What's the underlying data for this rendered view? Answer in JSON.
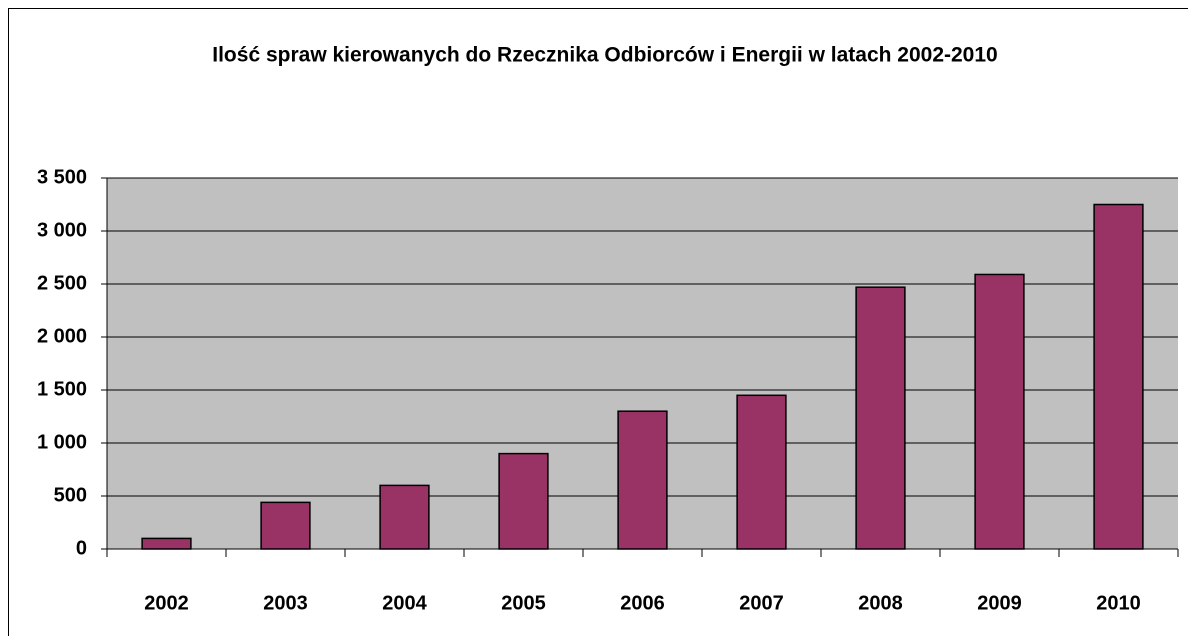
{
  "chart_data": {
    "type": "bar",
    "title": "Ilość spraw kierowanych do Rzecznika Odbiorców i Energii w latach 2002-2010",
    "categories": [
      "2002",
      "2003",
      "2004",
      "2005",
      "2006",
      "2007",
      "2008",
      "2009",
      "2010"
    ],
    "values": [
      100,
      440,
      600,
      900,
      1300,
      1450,
      2470,
      2590,
      3250
    ],
    "color": "#993366",
    "ylim": [
      0,
      3500
    ],
    "yticks": [
      0,
      500,
      {
        "value": 1000,
        "label": "1 000"
      },
      {
        "value": 1500,
        "label": "1 500"
      },
      {
        "value": 2000,
        "label": "2 000"
      },
      {
        "value": 2500,
        "label": "2 500"
      },
      {
        "value": 3000,
        "label": "3 000"
      },
      {
        "value": 3500,
        "label": "3 500"
      }
    ],
    "grid": true
  }
}
